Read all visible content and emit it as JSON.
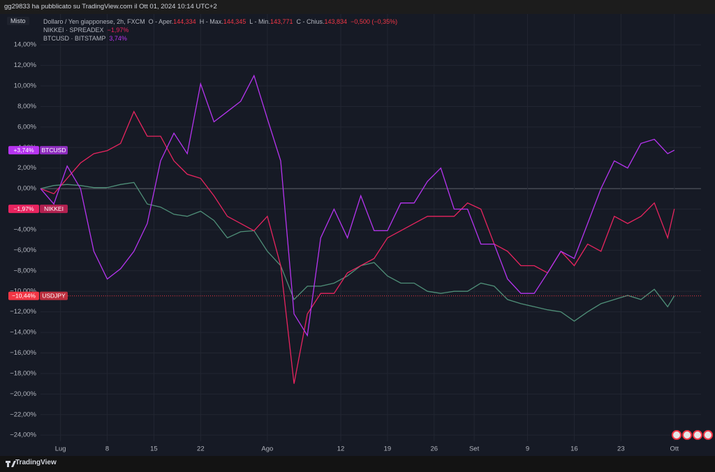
{
  "chart_data": {
    "type": "line",
    "header": "gg29833 ha pubblicato su TradingView.com il Ott 01, 2024 10:14 UTC+2",
    "scale_mode": "Misto",
    "footer": "TradingView",
    "grid": true,
    "x": [
      "2024-06-28",
      "2024-06-30",
      "2024-07-02",
      "2024-07-04",
      "2024-07-06",
      "2024-07-08",
      "2024-07-10",
      "2024-07-12",
      "2024-07-14",
      "2024-07-16",
      "2024-07-18",
      "2024-07-20",
      "2024-07-22",
      "2024-07-24",
      "2024-07-26",
      "2024-07-28",
      "2024-07-30",
      "2024-08-01",
      "2024-08-03",
      "2024-08-05",
      "2024-08-07",
      "2024-08-09",
      "2024-08-11",
      "2024-08-13",
      "2024-08-15",
      "2024-08-17",
      "2024-08-19",
      "2024-08-21",
      "2024-08-23",
      "2024-08-25",
      "2024-08-27",
      "2024-08-29",
      "2024-08-31",
      "2024-09-02",
      "2024-09-04",
      "2024-09-06",
      "2024-09-08",
      "2024-09-10",
      "2024-09-12",
      "2024-09-14",
      "2024-09-16",
      "2024-09-18",
      "2024-09-20",
      "2024-09-22",
      "2024-09-24",
      "2024-09-26",
      "2024-09-28",
      "2024-09-30",
      "2024-10-01"
    ],
    "xlim": [
      "2024-06-28",
      "2024-10-05"
    ],
    "xticks": [
      {
        "value": "2024-07-01",
        "label": "Lug"
      },
      {
        "value": "2024-07-08",
        "label": "8"
      },
      {
        "value": "2024-07-15",
        "label": "15"
      },
      {
        "value": "2024-07-22",
        "label": "22"
      },
      {
        "value": "2024-08-01",
        "label": "Ago"
      },
      {
        "value": "2024-08-12",
        "label": "12"
      },
      {
        "value": "2024-08-19",
        "label": "19"
      },
      {
        "value": "2024-08-26",
        "label": "26"
      },
      {
        "value": "2024-09-01",
        "label": "Set"
      },
      {
        "value": "2024-09-09",
        "label": "9"
      },
      {
        "value": "2024-09-16",
        "label": "16"
      },
      {
        "value": "2024-09-23",
        "label": "23"
      },
      {
        "value": "2024-10-01",
        "label": "Ott"
      }
    ],
    "ylim": [
      -24.6,
      15.1
    ],
    "yticks": [
      {
        "value": 14,
        "label": "14,00%"
      },
      {
        "value": 12,
        "label": "12,00%"
      },
      {
        "value": 10,
        "label": "10,00%"
      },
      {
        "value": 8,
        "label": "8,00%"
      },
      {
        "value": 6,
        "label": "6,00%"
      },
      {
        "value": 4,
        "label": "4,00%"
      },
      {
        "value": 2,
        "label": "2,00%"
      },
      {
        "value": 0,
        "label": "0,00%"
      },
      {
        "value": -2,
        "label": "−2,00%"
      },
      {
        "value": -4,
        "label": "−4,00%"
      },
      {
        "value": -6,
        "label": "−6,00%"
      },
      {
        "value": -8,
        "label": "−8,00%"
      },
      {
        "value": -10,
        "label": "−10,00%"
      },
      {
        "value": -12,
        "label": "−12,00%"
      },
      {
        "value": -14,
        "label": "−14,00%"
      },
      {
        "value": -16,
        "label": "−16,00%"
      },
      {
        "value": -18,
        "label": "−18,00%"
      },
      {
        "value": -20,
        "label": "−20,00%"
      },
      {
        "value": -22,
        "label": "−22,00%"
      },
      {
        "value": -24,
        "label": "−24,00%"
      }
    ],
    "series": [
      {
        "name": "USDJPY",
        "title": "Dollaro / Yen giapponese, 2h, FXCM",
        "color": "#4f8f78",
        "badge_color": "#f23645",
        "ohlc": [
          {
            "name": "O - Aper.",
            "value": "144,334"
          },
          {
            "name": "H - Max.",
            "value": "144,345"
          },
          {
            "name": "L - Min.",
            "value": "143,771"
          },
          {
            "name": "C - Chius.",
            "value": "143,834"
          }
        ],
        "change": "−0,500 (−0,35%)",
        "badge_value": "−10,44%",
        "values": [
          0,
          0.3,
          0.4,
          0.3,
          0.1,
          0.1,
          0.4,
          0.6,
          -1.5,
          -1.8,
          -2.5,
          -2.7,
          -2.2,
          -3.1,
          -4.8,
          -4.2,
          -4.1,
          -6.1,
          -7.5,
          -10.8,
          -9.5,
          -9.5,
          -9.2,
          -8.5,
          -7.5,
          -7.2,
          -8.5,
          -9.2,
          -9.2,
          -10,
          -10.2,
          -10,
          -10,
          -9.2,
          -9.5,
          -10.8,
          -11.2,
          -11.5,
          -11.8,
          -12,
          -12.9,
          -12,
          -11.2,
          -10.8,
          -10.4,
          -10.8,
          -9.8,
          -11.5,
          -10.44
        ]
      },
      {
        "name": "NIKKEI",
        "source": "SPREADEX",
        "color": "#e8245f",
        "badge_color": "#e8245f",
        "legend_value": "−1,97%",
        "badge_value": "−1,97%",
        "values": [
          0,
          -0.5,
          1.0,
          2.5,
          3.4,
          3.7,
          4.4,
          7.5,
          5.1,
          5.1,
          2.7,
          1.4,
          1.0,
          -0.7,
          -2.7,
          -3.4,
          -4.1,
          -2.7,
          -7.5,
          -19,
          -12.2,
          -10.2,
          -10.2,
          -8.2,
          -7.5,
          -6.8,
          -4.8,
          -4.1,
          -3.4,
          -2.7,
          -2.7,
          -2.7,
          -1.4,
          -2,
          -5.4,
          -6.1,
          -7.5,
          -7.5,
          -8.2,
          -6.1,
          -7.5,
          -5.4,
          -6.1,
          -2.7,
          -3.4,
          -2.7,
          -1.4,
          -4.8,
          -1.97
        ]
      },
      {
        "name": "BTCUSD",
        "source": "BITSTAMP",
        "color": "#b634f0",
        "badge_color": "#b634f0",
        "legend_value": "3,74%",
        "badge_value": "+3,74%",
        "values": [
          0,
          -1.5,
          2.2,
          0,
          -6.1,
          -8.8,
          -7.8,
          -6.1,
          -3.4,
          2.7,
          5.4,
          3.4,
          10.2,
          6.5,
          7.5,
          8.5,
          11,
          6.8,
          2.7,
          -12.2,
          -14.3,
          -4.8,
          -2,
          -4.8,
          -0.7,
          -4.1,
          -4.1,
          -1.4,
          -1.4,
          0.7,
          2,
          -2,
          -2,
          -5.4,
          -5.4,
          -8.8,
          -10.2,
          -10.2,
          -8.2,
          -6.1,
          -6.8,
          -3.4,
          0,
          2.7,
          2,
          4.4,
          4.8,
          3.4,
          3.74
        ]
      }
    ]
  }
}
